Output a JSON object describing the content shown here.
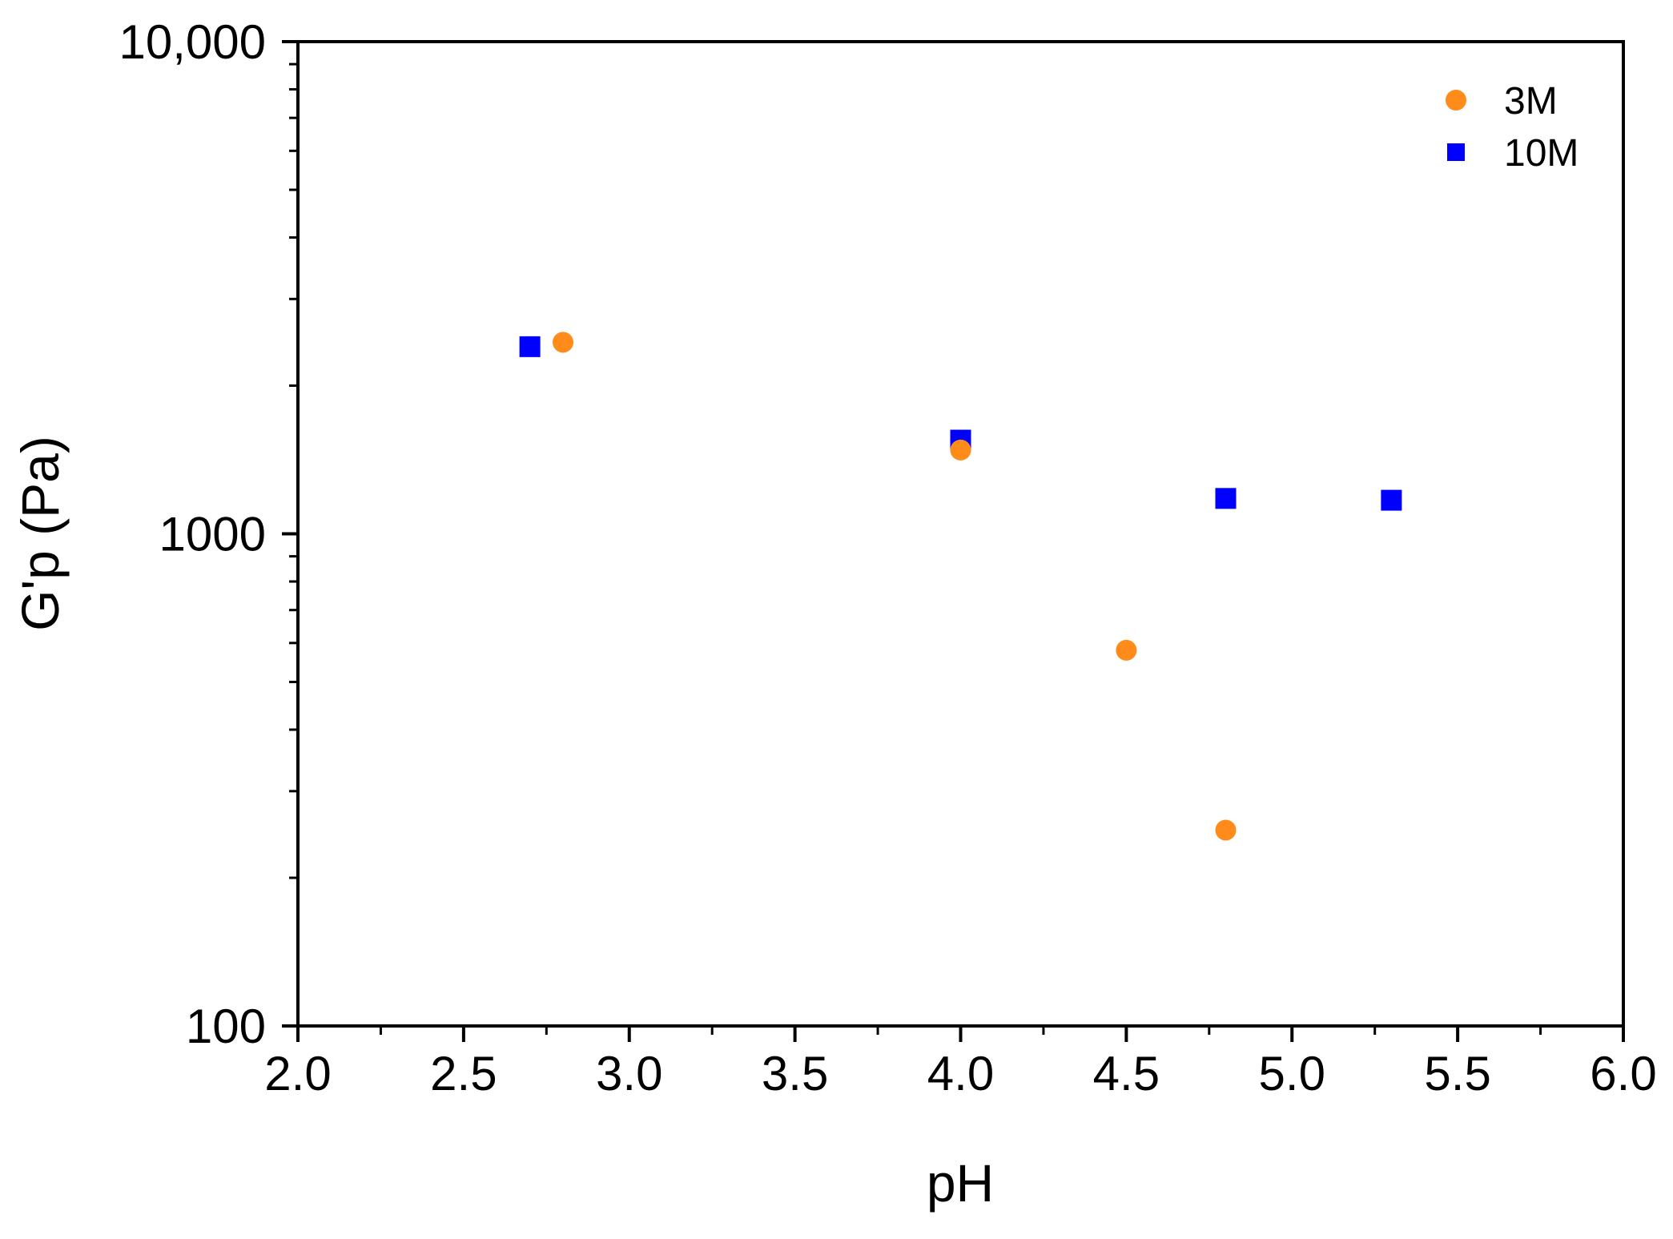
{
  "chart_data": {
    "type": "scatter",
    "title": "",
    "xlabel": "pH",
    "ylabel": "G'p (Pa)",
    "xlim": [
      2.0,
      6.0
    ],
    "ylim": [
      100,
      10000
    ],
    "yscale": "log",
    "xticks": [
      2.0,
      2.5,
      3.0,
      3.5,
      4.0,
      4.5,
      5.0,
      5.5,
      6.0
    ],
    "xtick_labels": [
      "2.0",
      "2.5",
      "3.0",
      "3.5",
      "4.0",
      "4.5",
      "5.0",
      "5.5",
      "6.0"
    ],
    "yticks": [
      100,
      1000,
      10000
    ],
    "ytick_labels": [
      "100",
      "1000",
      "10,000"
    ],
    "grid": false,
    "legend_position": "top-right",
    "series": [
      {
        "name": "3M",
        "marker": "circle",
        "color": "#FF8C1A",
        "x": [
          2.8,
          4.0,
          4.5,
          4.8
        ],
        "y": [
          2450,
          1480,
          580,
          250
        ]
      },
      {
        "name": "10M",
        "marker": "square",
        "color": "#0000FF",
        "x": [
          2.7,
          4.0,
          4.8,
          5.3
        ],
        "y": [
          2400,
          1550,
          1180,
          1170
        ]
      }
    ]
  }
}
